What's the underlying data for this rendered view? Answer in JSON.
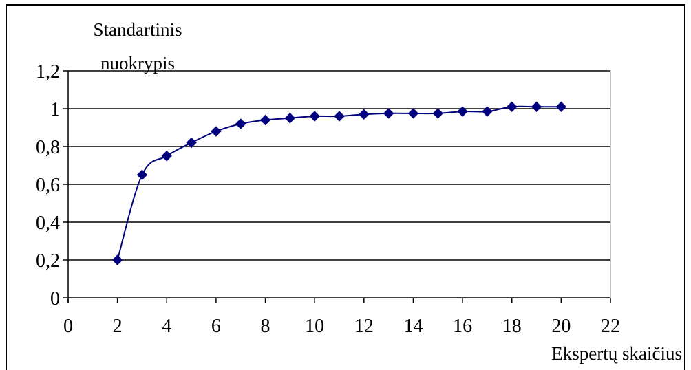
{
  "chart_data": {
    "type": "line",
    "ylabel_lines": [
      "Standartinis",
      "nuokrypis"
    ],
    "xlabel": "Ekspertų skaičius",
    "x_ticks": [
      "0",
      "2",
      "4",
      "6",
      "8",
      "10",
      "12",
      "14",
      "16",
      "18",
      "20",
      "22"
    ],
    "x_tick_values": [
      0,
      2,
      4,
      6,
      8,
      10,
      12,
      14,
      16,
      18,
      20,
      22
    ],
    "y_ticks": [
      "0",
      "0,2",
      "0,4",
      "0,6",
      "0,8",
      "1",
      "1,2"
    ],
    "y_tick_values": [
      0,
      0.2,
      0.4,
      0.6,
      0.8,
      1.0,
      1.2
    ],
    "xlim": [
      0,
      22
    ],
    "ylim": [
      0,
      1.2
    ],
    "grid": "horizontal",
    "legend": "none",
    "series": [
      {
        "x": [
          2,
          3,
          4,
          5,
          6,
          7,
          8,
          9,
          10,
          11,
          12,
          13,
          14,
          15,
          16,
          17,
          18,
          19,
          20
        ],
        "y": [
          0.2,
          0.65,
          0.75,
          0.82,
          0.88,
          0.92,
          0.94,
          0.95,
          0.96,
          0.96,
          0.97,
          0.975,
          0.975,
          0.975,
          0.985,
          0.985,
          1.01,
          1.01,
          1.01
        ],
        "color": "#00007f",
        "marker": "diamond"
      }
    ]
  }
}
